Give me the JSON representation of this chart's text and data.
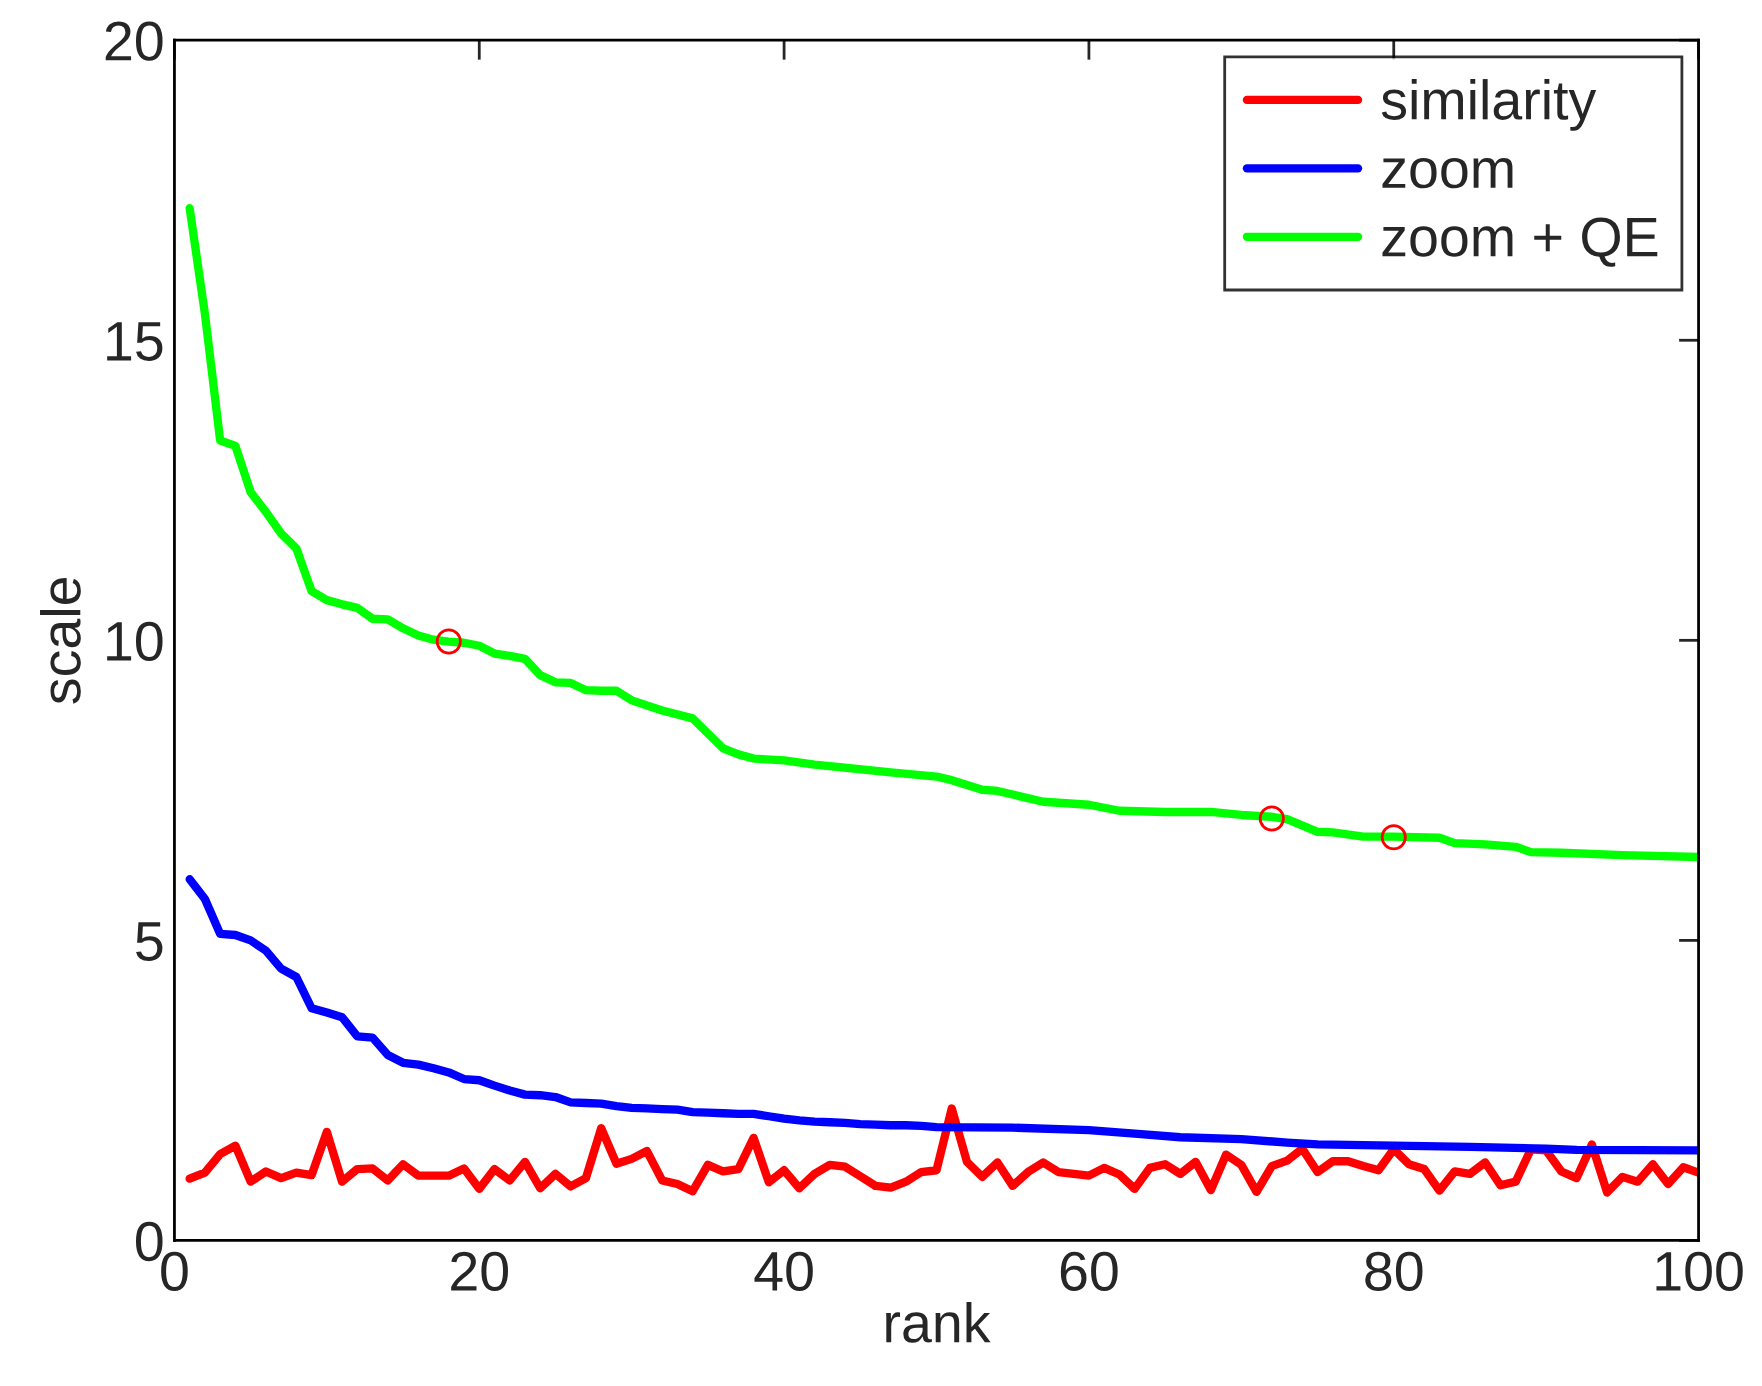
{
  "chart_data": {
    "type": "line",
    "xlabel": "rank",
    "ylabel": "scale",
    "xlim": [
      0,
      100
    ],
    "ylim": [
      0,
      20
    ],
    "xticks": [
      0,
      20,
      40,
      60,
      80,
      100
    ],
    "yticks": [
      0,
      5,
      10,
      15,
      20
    ],
    "grid": false,
    "legend": "top right",
    "line_style": "solid",
    "series": [
      {
        "name": "similarity",
        "color": "#ff0000",
        "x": [
          1,
          2,
          3,
          4,
          5,
          6,
          7,
          8,
          9,
          10,
          11,
          12,
          13,
          14,
          15,
          16,
          17,
          18,
          19,
          20,
          21,
          22,
          23,
          24,
          25,
          26,
          27,
          28,
          29,
          30,
          31,
          32,
          33,
          34,
          35,
          36,
          37,
          38,
          39,
          40,
          41,
          42,
          43,
          44,
          45,
          46,
          47,
          48,
          49,
          50,
          51,
          52,
          53,
          54,
          55,
          56,
          57,
          58,
          59,
          60,
          61,
          62,
          63,
          64,
          65,
          66,
          67,
          68,
          69,
          70,
          71,
          72,
          73,
          74,
          75,
          76,
          77,
          78,
          79,
          80,
          81,
          82,
          83,
          84,
          85,
          86,
          87,
          88,
          89,
          90,
          91,
          92,
          93,
          94,
          95,
          96,
          97,
          98,
          99,
          100
        ],
        "values": [
          1.03,
          1.13,
          1.44,
          1.58,
          0.98,
          1.15,
          1.04,
          1.13,
          1.09,
          1.81,
          0.98,
          1.19,
          1.2,
          1.0,
          1.27,
          1.08,
          1.08,
          1.08,
          1.2,
          0.86,
          1.19,
          1.0,
          1.31,
          0.87,
          1.11,
          0.9,
          1.04,
          1.87,
          1.28,
          1.36,
          1.49,
          1.0,
          0.94,
          0.82,
          1.26,
          1.15,
          1.19,
          1.71,
          0.97,
          1.17,
          0.87,
          1.11,
          1.26,
          1.23,
          1.07,
          0.91,
          0.88,
          0.98,
          1.14,
          1.17,
          2.2,
          1.31,
          1.06,
          1.3,
          0.91,
          1.14,
          1.3,
          1.14,
          1.11,
          1.08,
          1.21,
          1.1,
          0.86,
          1.21,
          1.27,
          1.11,
          1.31,
          0.84,
          1.43,
          1.26,
          0.81,
          1.24,
          1.33,
          1.53,
          1.14,
          1.32,
          1.32,
          1.24,
          1.17,
          1.52,
          1.27,
          1.19,
          0.83,
          1.15,
          1.11,
          1.3,
          0.92,
          0.98,
          1.52,
          1.5,
          1.15,
          1.04,
          1.6,
          0.8,
          1.06,
          0.98,
          1.27,
          0.94,
          1.22,
          1.13
        ]
      },
      {
        "name": "zoom",
        "color": "#0000ff",
        "x": [
          1,
          2,
          3,
          4,
          5,
          6,
          7,
          8,
          9,
          10,
          11,
          12,
          13,
          14,
          15,
          16,
          17,
          18,
          19,
          20,
          21,
          22,
          23,
          24,
          25,
          26,
          27,
          28,
          29,
          30,
          31,
          32,
          33,
          34,
          35,
          36,
          37,
          38,
          39,
          40,
          41,
          42,
          43,
          44,
          45,
          46,
          47,
          48,
          49,
          50,
          55,
          60,
          63,
          66,
          70,
          73,
          75,
          80,
          85,
          90,
          92,
          100
        ],
        "values": [
          6.02,
          5.69,
          5.11,
          5.09,
          5.0,
          4.83,
          4.53,
          4.39,
          3.87,
          3.8,
          3.72,
          3.4,
          3.38,
          3.09,
          2.96,
          2.93,
          2.87,
          2.8,
          2.69,
          2.67,
          2.58,
          2.5,
          2.43,
          2.42,
          2.39,
          2.3,
          2.29,
          2.28,
          2.24,
          2.21,
          2.2,
          2.19,
          2.18,
          2.14,
          2.13,
          2.12,
          2.11,
          2.11,
          2.07,
          2.03,
          2.0,
          1.98,
          1.97,
          1.96,
          1.94,
          1.93,
          1.92,
          1.92,
          1.91,
          1.89,
          1.88,
          1.84,
          1.78,
          1.72,
          1.69,
          1.63,
          1.6,
          1.58,
          1.56,
          1.53,
          1.51,
          1.5
        ]
      },
      {
        "name": "zoom + QE",
        "color": "#00ff00",
        "x": [
          1,
          2,
          3,
          4,
          5,
          6,
          7,
          8,
          9,
          10,
          11,
          12,
          13,
          14,
          15,
          16,
          17,
          18,
          19,
          20,
          21,
          22,
          23,
          24,
          25,
          26,
          27,
          28,
          29,
          30,
          32,
          34,
          36,
          37,
          38,
          40,
          42,
          47,
          50,
          51,
          53,
          54,
          57,
          60,
          62,
          65,
          68,
          70,
          72,
          73,
          75,
          76,
          78,
          80,
          83,
          84,
          86,
          88,
          89,
          91,
          95,
          100
        ],
        "values": [
          17.2,
          15.44,
          13.33,
          13.24,
          12.47,
          12.14,
          11.78,
          11.53,
          10.82,
          10.67,
          10.6,
          10.54,
          10.36,
          10.35,
          10.2,
          10.08,
          10.01,
          9.98,
          9.96,
          9.91,
          9.78,
          9.74,
          9.69,
          9.42,
          9.3,
          9.29,
          9.17,
          9.16,
          9.16,
          9.0,
          8.83,
          8.7,
          8.2,
          8.1,
          8.03,
          8.0,
          7.93,
          7.8,
          7.73,
          7.67,
          7.51,
          7.49,
          7.31,
          7.26,
          7.16,
          7.14,
          7.14,
          7.09,
          7.06,
          7.02,
          6.81,
          6.8,
          6.73,
          6.73,
          6.71,
          6.62,
          6.6,
          6.56,
          6.47,
          6.46,
          6.42,
          6.39
        ]
      },
      {
        "type": "scatter",
        "marker": "circle",
        "color": "#ff0000",
        "x": [
          18,
          72,
          80
        ],
        "values": [
          9.98,
          7.03,
          6.72
        ]
      }
    ]
  }
}
